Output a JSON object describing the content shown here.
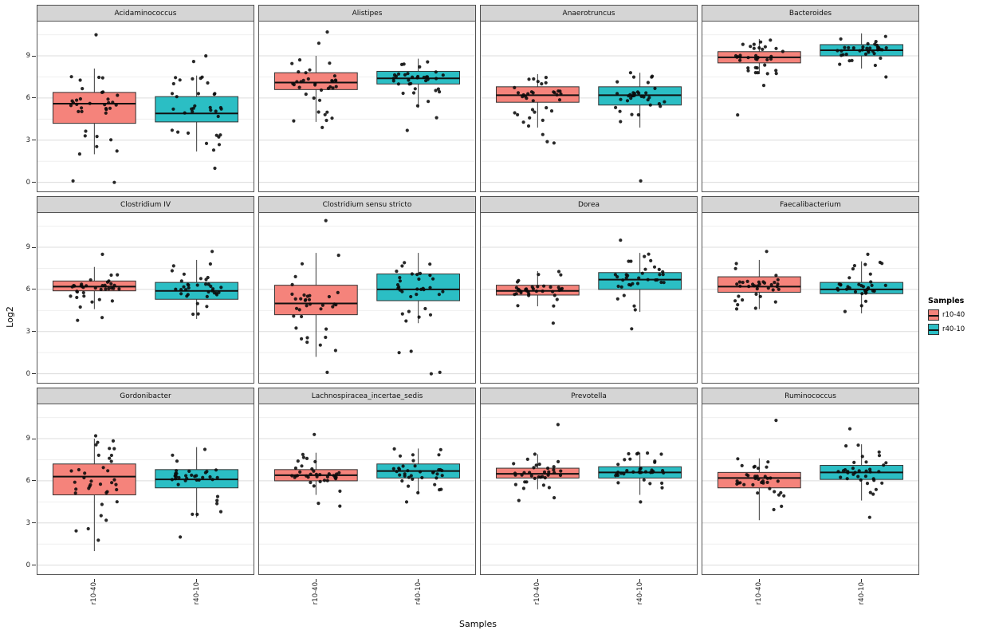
{
  "figure": {
    "y_axis_title": "Log2",
    "x_axis_title": "Samples",
    "legend": {
      "title": "Samples",
      "entries": [
        {
          "label": "r10-40",
          "color": "#F5837B"
        },
        {
          "label": "r40-10",
          "color": "#2BBEC4"
        }
      ]
    }
  },
  "chart_data": {
    "type": "boxplot",
    "layout": "facet-grid-3x4",
    "title": "",
    "xlabel": "Samples",
    "ylabel": "Log2",
    "ylim": [
      -0.7,
      11.5
    ],
    "y_ticks": [
      0,
      3,
      6,
      9
    ],
    "y_minor_ticks": [
      1.5,
      4.5,
      7.5,
      10.5
    ],
    "groups": [
      "r10-40",
      "r40-10"
    ],
    "colors": {
      "r10-40": "#F5837B",
      "r40-10": "#2BBEC4"
    },
    "legend_position": "right",
    "grid": true,
    "facets": [
      {
        "title": "Acidaminococcus",
        "boxes": [
          {
            "group": "r10-40",
            "lo": 2.0,
            "q1": 4.2,
            "med": 5.6,
            "q3": 6.4,
            "hi": 8.1,
            "outliers": [
              10.5,
              0.1,
              0.0
            ],
            "n": 34
          },
          {
            "group": "r40-10",
            "lo": 2.2,
            "q1": 4.3,
            "med": 4.9,
            "q3": 6.1,
            "hi": 7.6,
            "outliers": [
              9.0,
              8.6,
              1.0
            ],
            "n": 33
          }
        ]
      },
      {
        "title": "Alistipes",
        "boxes": [
          {
            "group": "r10-40",
            "lo": 4.3,
            "q1": 6.6,
            "med": 7.1,
            "q3": 7.8,
            "hi": 9.0,
            "outliers": [
              10.7,
              9.9,
              3.9
            ],
            "n": 34
          },
          {
            "group": "r40-10",
            "lo": 5.3,
            "q1": 7.0,
            "med": 7.4,
            "q3": 7.9,
            "hi": 8.8,
            "outliers": [
              4.6,
              3.7
            ],
            "n": 34
          }
        ]
      },
      {
        "title": "Anaerotruncus",
        "boxes": [
          {
            "group": "r10-40",
            "lo": 3.9,
            "q1": 5.7,
            "med": 6.2,
            "q3": 6.8,
            "hi": 7.7,
            "outliers": [
              3.4,
              2.9,
              2.8
            ],
            "n": 33
          },
          {
            "group": "r40-10",
            "lo": 3.9,
            "q1": 5.5,
            "med": 6.2,
            "q3": 6.8,
            "hi": 7.8,
            "outliers": [
              0.1
            ],
            "n": 34
          }
        ]
      },
      {
        "title": "Bacteroides",
        "boxes": [
          {
            "group": "r10-40",
            "lo": 7.7,
            "q1": 8.5,
            "med": 8.9,
            "q3": 9.3,
            "hi": 10.2,
            "outliers": [
              4.8,
              6.9
            ],
            "n": 35
          },
          {
            "group": "r40-10",
            "lo": 8.1,
            "q1": 9.0,
            "med": 9.4,
            "q3": 9.8,
            "hi": 10.6,
            "outliers": [
              7.5
            ],
            "n": 35
          }
        ]
      },
      {
        "title": "Clostridium IV",
        "boxes": [
          {
            "group": "r10-40",
            "lo": 4.6,
            "q1": 5.9,
            "med": 6.2,
            "q3": 6.6,
            "hi": 7.6,
            "outliers": [
              8.5,
              4.0,
              3.8
            ],
            "n": 34
          },
          {
            "group": "r40-10",
            "lo": 3.9,
            "q1": 5.3,
            "med": 5.9,
            "q3": 6.5,
            "hi": 8.1,
            "outliers": [
              8.7
            ],
            "n": 35
          }
        ]
      },
      {
        "title": "Clostridium sensu stricto",
        "boxes": [
          {
            "group": "r10-40",
            "lo": 1.2,
            "q1": 4.2,
            "med": 5.0,
            "q3": 6.3,
            "hi": 8.6,
            "outliers": [
              10.9,
              0.1
            ],
            "n": 34
          },
          {
            "group": "r40-10",
            "lo": 3.6,
            "q1": 5.2,
            "med": 6.0,
            "q3": 7.1,
            "hi": 8.6,
            "outliers": [
              1.6,
              1.5,
              0.1,
              0.0
            ],
            "n": 32
          }
        ]
      },
      {
        "title": "Dorea",
        "boxes": [
          {
            "group": "r10-40",
            "lo": 4.8,
            "q1": 5.6,
            "med": 5.9,
            "q3": 6.3,
            "hi": 7.3,
            "outliers": [
              3.6
            ],
            "n": 35
          },
          {
            "group": "r40-10",
            "lo": 4.4,
            "q1": 6.0,
            "med": 6.7,
            "q3": 7.2,
            "hi": 8.6,
            "outliers": [
              9.5,
              3.2
            ],
            "n": 34
          }
        ]
      },
      {
        "title": "Faecalibacterium",
        "boxes": [
          {
            "group": "r10-40",
            "lo": 4.6,
            "q1": 5.8,
            "med": 6.2,
            "q3": 6.9,
            "hi": 8.1,
            "outliers": [
              8.7
            ],
            "n": 34
          },
          {
            "group": "r40-10",
            "lo": 4.3,
            "q1": 5.7,
            "med": 6.0,
            "q3": 6.5,
            "hi": 8.0,
            "outliers": [
              8.5
            ],
            "n": 35
          }
        ]
      },
      {
        "title": "Gordonibacter",
        "boxes": [
          {
            "group": "r10-40",
            "lo": 1.0,
            "q1": 5.0,
            "med": 6.3,
            "q3": 7.2,
            "hi": 9.0,
            "outliers": [
              9.2
            ],
            "n": 36
          },
          {
            "group": "r40-10",
            "lo": 3.4,
            "q1": 5.5,
            "med": 6.1,
            "q3": 6.8,
            "hi": 8.4,
            "outliers": [
              2.0
            ],
            "n": 35
          }
        ]
      },
      {
        "title": "Lachnospiracea_incertae_sedis",
        "boxes": [
          {
            "group": "r10-40",
            "lo": 5.0,
            "q1": 6.0,
            "med": 6.4,
            "q3": 6.8,
            "hi": 8.0,
            "outliers": [
              9.3,
              4.4,
              4.2
            ],
            "n": 34
          },
          {
            "group": "r40-10",
            "lo": 5.1,
            "q1": 6.2,
            "med": 6.7,
            "q3": 7.2,
            "hi": 8.3,
            "outliers": [
              4.5
            ],
            "n": 35
          }
        ]
      },
      {
        "title": "Prevotella",
        "boxes": [
          {
            "group": "r10-40",
            "lo": 5.4,
            "q1": 6.2,
            "med": 6.5,
            "q3": 6.9,
            "hi": 7.9,
            "outliers": [
              10.0,
              4.8,
              4.6
            ],
            "n": 33
          },
          {
            "group": "r40-10",
            "lo": 5.0,
            "q1": 6.2,
            "med": 6.6,
            "q3": 7.0,
            "hi": 8.0,
            "outliers": [
              4.5
            ],
            "n": 35
          }
        ]
      },
      {
        "title": "Ruminococcus",
        "boxes": [
          {
            "group": "r10-40",
            "lo": 3.2,
            "q1": 5.5,
            "med": 6.2,
            "q3": 6.6,
            "hi": 7.6,
            "outliers": [
              10.3
            ],
            "n": 35
          },
          {
            "group": "r40-10",
            "lo": 4.6,
            "q1": 6.1,
            "med": 6.6,
            "q3": 7.1,
            "hi": 8.6,
            "outliers": [
              9.7,
              3.4
            ],
            "n": 34
          }
        ]
      }
    ]
  }
}
